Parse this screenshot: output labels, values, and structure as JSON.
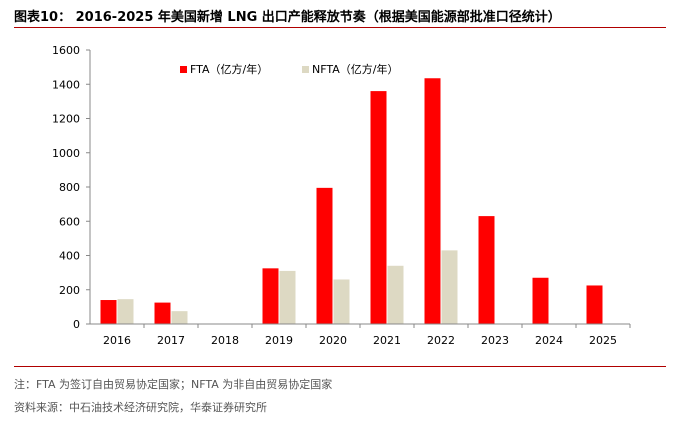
{
  "header": {
    "title": "图表10：  2016-2025 年美国新增 LNG 出口产能释放节奏（根据美国能源部批准口径统计）"
  },
  "footer": {
    "note": "注：FTA 为签订自由贸易协定国家；NFTA 为非自由贸易协定国家",
    "source": "资料来源：中石油技术经济研究院，华泰证券研究所"
  },
  "chart_data": {
    "type": "bar",
    "categories": [
      "2016",
      "2017",
      "2018",
      "2019",
      "2020",
      "2021",
      "2022",
      "2023",
      "2024",
      "2025"
    ],
    "series": [
      {
        "name": "FTA（亿方/年）",
        "color": "#ff0000",
        "values": [
          140,
          125,
          0,
          325,
          795,
          1360,
          1435,
          630,
          270,
          225
        ]
      },
      {
        "name": "NFTA（亿方/年）",
        "color": "#ddd9c3",
        "values": [
          145,
          75,
          0,
          310,
          260,
          340,
          430,
          0,
          0,
          0
        ]
      }
    ],
    "yticks": [
      "0",
      "200",
      "400",
      "600",
      "800",
      "1000",
      "1200",
      "1400",
      "1600"
    ],
    "ylim": [
      0,
      1600
    ],
    "legend_position": "top-center",
    "grid": false
  }
}
